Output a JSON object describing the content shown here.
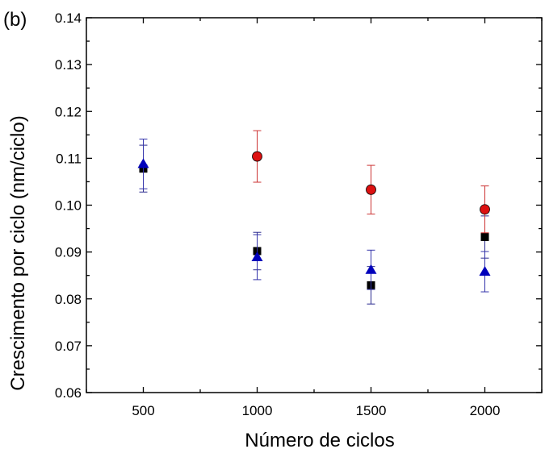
{
  "chart_data": {
    "type": "scatter",
    "panel_label": "(b)",
    "title": "",
    "xlabel": "Número de ciclos",
    "ylabel": "Crescimento por ciclo (nm/ciclo)",
    "xlim": [
      250,
      2250
    ],
    "ylim": [
      0.06,
      0.14
    ],
    "x_ticks": [
      500,
      1000,
      1500,
      2000
    ],
    "x_tick_labels": [
      "500",
      "1000",
      "1500",
      "2000"
    ],
    "y_ticks": [
      0.06,
      0.07,
      0.08,
      0.09,
      0.1,
      0.11,
      0.12,
      0.13,
      0.14
    ],
    "y_tick_labels": [
      "0.06",
      "0.07",
      "0.08",
      "0.09",
      "0.10",
      "0.11",
      "0.12",
      "0.13",
      "0.14"
    ],
    "grid": false,
    "series": [
      {
        "marker": "square",
        "color": "#000000",
        "error_color": "#2b2b8f",
        "x": [
          500,
          1000,
          1500,
          2000
        ],
        "y": [
          0.1078,
          0.0902,
          0.0829,
          0.0932
        ],
        "err": [
          0.005,
          0.004,
          0.004,
          0.0045
        ]
      },
      {
        "marker": "circle",
        "color": "#dd1111",
        "error_color": "#cc3333",
        "x": [
          1000,
          1500,
          2000
        ],
        "y": [
          0.1104,
          0.1033,
          0.0991
        ],
        "err": [
          0.0055,
          0.0052,
          0.005
        ]
      },
      {
        "marker": "triangle",
        "color": "#0000bb",
        "error_color": "#3333aa",
        "x": [
          500,
          1000,
          1500,
          2000
        ],
        "y": [
          0.1088,
          0.0889,
          0.0862,
          0.0858
        ],
        "err": [
          0.0053,
          0.0048,
          0.0042,
          0.0043
        ]
      }
    ]
  }
}
